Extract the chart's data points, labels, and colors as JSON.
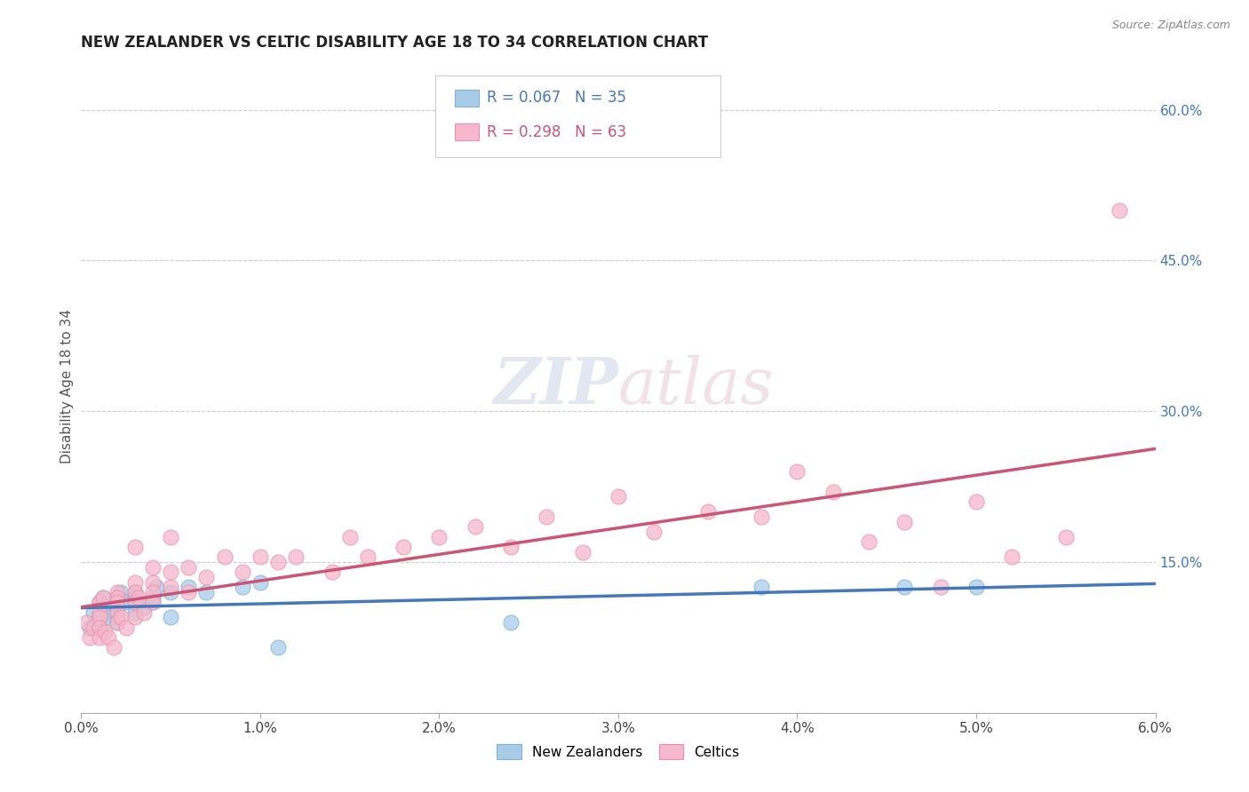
{
  "title": "NEW ZEALANDER VS CELTIC DISABILITY AGE 18 TO 34 CORRELATION CHART",
  "source": "Source: ZipAtlas.com",
  "ylabel": "Disability Age 18 to 34",
  "xlim": [
    0.0,
    0.06
  ],
  "ylim": [
    0.0,
    0.65
  ],
  "xtick_labels": [
    "0.0%",
    "1.0%",
    "2.0%",
    "3.0%",
    "4.0%",
    "5.0%",
    "6.0%"
  ],
  "xtick_vals": [
    0.0,
    0.01,
    0.02,
    0.03,
    0.04,
    0.05,
    0.06
  ],
  "ytick_labels": [
    "15.0%",
    "30.0%",
    "45.0%",
    "60.0%"
  ],
  "ytick_vals": [
    0.15,
    0.3,
    0.45,
    0.6
  ],
  "legend1_r": "0.067",
  "legend1_n": "35",
  "legend2_r": "0.298",
  "legend2_n": "63",
  "blue_marker": "#a8cce8",
  "blue_edge": "#7fb3d8",
  "pink_marker": "#f5b8cc",
  "pink_edge": "#ee90ab",
  "blue_line": "#4477bb",
  "pink_line": "#cc5577",
  "legend_label1": "New Zealanders",
  "legend_label2": "Celtics",
  "nz_x": [
    0.0005,
    0.0007,
    0.0008,
    0.001,
    0.001,
    0.001,
    0.0012,
    0.0013,
    0.0015,
    0.0015,
    0.002,
    0.002,
    0.002,
    0.002,
    0.0022,
    0.0025,
    0.003,
    0.003,
    0.003,
    0.003,
    0.0035,
    0.004,
    0.004,
    0.0042,
    0.005,
    0.005,
    0.006,
    0.007,
    0.009,
    0.01,
    0.011,
    0.024,
    0.038,
    0.046,
    0.05
  ],
  "nz_y": [
    0.085,
    0.1,
    0.09,
    0.11,
    0.095,
    0.085,
    0.115,
    0.105,
    0.1,
    0.095,
    0.115,
    0.105,
    0.095,
    0.09,
    0.12,
    0.11,
    0.12,
    0.115,
    0.11,
    0.1,
    0.105,
    0.115,
    0.11,
    0.125,
    0.12,
    0.095,
    0.125,
    0.12,
    0.125,
    0.13,
    0.065,
    0.09,
    0.125,
    0.125,
    0.125
  ],
  "celtic_x": [
    0.0003,
    0.0005,
    0.0007,
    0.001,
    0.001,
    0.001,
    0.001,
    0.001,
    0.0012,
    0.0013,
    0.0015,
    0.0018,
    0.002,
    0.002,
    0.002,
    0.002,
    0.002,
    0.0022,
    0.0025,
    0.003,
    0.003,
    0.003,
    0.003,
    0.003,
    0.0032,
    0.0035,
    0.004,
    0.004,
    0.004,
    0.004,
    0.005,
    0.005,
    0.005,
    0.006,
    0.006,
    0.007,
    0.008,
    0.009,
    0.01,
    0.011,
    0.012,
    0.014,
    0.015,
    0.016,
    0.018,
    0.02,
    0.022,
    0.024,
    0.026,
    0.028,
    0.03,
    0.032,
    0.035,
    0.038,
    0.04,
    0.042,
    0.044,
    0.046,
    0.048,
    0.05,
    0.052,
    0.055,
    0.058
  ],
  "celtic_y": [
    0.09,
    0.075,
    0.085,
    0.11,
    0.1,
    0.095,
    0.085,
    0.075,
    0.115,
    0.08,
    0.075,
    0.065,
    0.12,
    0.115,
    0.11,
    0.1,
    0.09,
    0.095,
    0.085,
    0.165,
    0.13,
    0.12,
    0.11,
    0.095,
    0.115,
    0.1,
    0.145,
    0.13,
    0.12,
    0.11,
    0.175,
    0.14,
    0.125,
    0.145,
    0.12,
    0.135,
    0.155,
    0.14,
    0.155,
    0.15,
    0.155,
    0.14,
    0.175,
    0.155,
    0.165,
    0.175,
    0.185,
    0.165,
    0.195,
    0.16,
    0.215,
    0.18,
    0.2,
    0.195,
    0.24,
    0.22,
    0.17,
    0.19,
    0.125,
    0.21,
    0.155,
    0.175,
    0.5
  ]
}
